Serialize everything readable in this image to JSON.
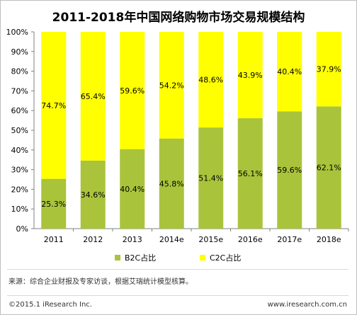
{
  "chart_data": {
    "type": "bar",
    "stacked": true,
    "title": "2011-2018年中国网络购物市场交易规模结构",
    "categories": [
      "2011",
      "2012",
      "2013",
      "2014e",
      "2015e",
      "2016e",
      "2017e",
      "2018e"
    ],
    "series": [
      {
        "name": "B2C占比",
        "color": "#a9c43b",
        "values": [
          25.3,
          34.6,
          40.4,
          45.8,
          51.4,
          56.1,
          59.6,
          62.1
        ]
      },
      {
        "name": "C2C占比",
        "color": "#ffff00",
        "values": [
          74.7,
          65.4,
          59.6,
          54.2,
          48.6,
          43.9,
          40.4,
          37.9
        ]
      }
    ],
    "yticks": [
      "0%",
      "10%",
      "20%",
      "30%",
      "40%",
      "50%",
      "60%",
      "70%",
      "80%",
      "90%",
      "100%"
    ],
    "ylim": [
      0,
      100
    ],
    "legend_position": "bottom",
    "grid": false
  },
  "source_text": "来源：综合企业财报及专家访谈，根据艾瑞统计模型核算。",
  "copyright": "©2015.1 iResearch Inc.",
  "website": "www.iresearch.com.cn"
}
